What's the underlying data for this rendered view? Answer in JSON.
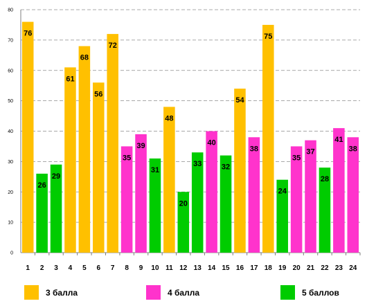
{
  "chart_data": {
    "type": "bar",
    "title": "",
    "xlabel": "",
    "ylabel": "",
    "ylim": [
      0,
      80
    ],
    "yticks": [
      0,
      10,
      20,
      30,
      40,
      50,
      60,
      70,
      80
    ],
    "grid": true,
    "categories": [
      "1",
      "2",
      "3",
      "4",
      "5",
      "6",
      "7",
      "8",
      "9",
      "10",
      "11",
      "12",
      "13",
      "14",
      "15",
      "16",
      "17",
      "18",
      "19",
      "20",
      "21",
      "22",
      "23",
      "24"
    ],
    "values": [
      76,
      26,
      29,
      61,
      68,
      56,
      72,
      35,
      39,
      31,
      48,
      20,
      33,
      40,
      32,
      54,
      38,
      75,
      24,
      35,
      37,
      28,
      41,
      38
    ],
    "groups": [
      "3 балла",
      "5 баллов",
      "5 баллов",
      "3 балла",
      "3 балла",
      "3 балла",
      "3 балла",
      "4 балла",
      "4 балла",
      "5 баллов",
      "3 балла",
      "5 баллов",
      "5 баллов",
      "4 балла",
      "5 баллов",
      "3 балла",
      "4 балла",
      "3 балла",
      "5 баллов",
      "4 балла",
      "4 балла",
      "5 баллов",
      "4 балла",
      "4 балла"
    ],
    "legend_position": "bottom",
    "legend": [
      {
        "name": "3 балла",
        "color": "#FFC000"
      },
      {
        "name": "4 балла",
        "color": "#FF33CC"
      },
      {
        "name": "5 баллов",
        "color": "#00CC00"
      }
    ]
  }
}
